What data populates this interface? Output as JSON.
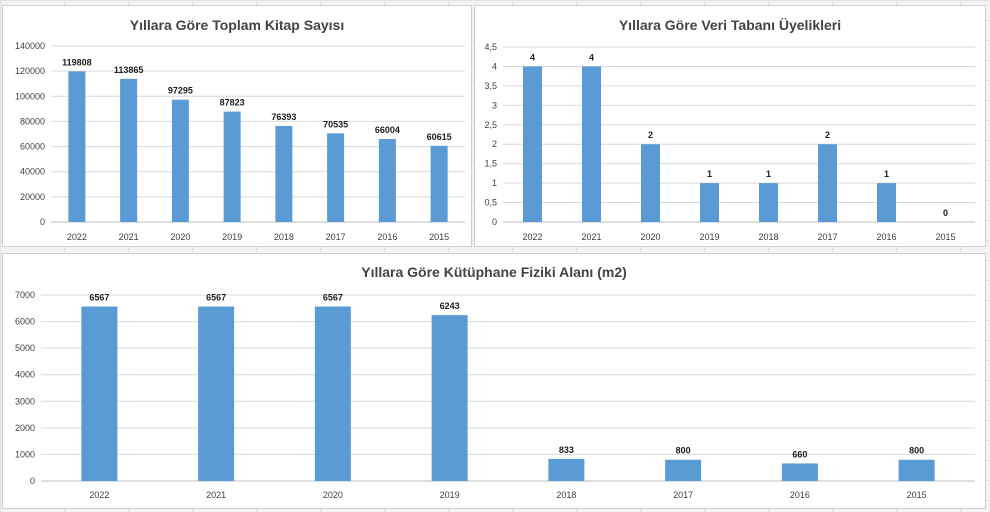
{
  "chart_data": [
    {
      "type": "bar",
      "title": "Yıllara Göre Toplam Kitap Sayısı",
      "categories": [
        "2022",
        "2021",
        "2020",
        "2019",
        "2018",
        "2017",
        "2016",
        "2015"
      ],
      "values": [
        119808,
        113865,
        97295,
        87823,
        76393,
        70535,
        66004,
        60615
      ],
      "labels": [
        "119808",
        "113865",
        "97295",
        "87823",
        "76393",
        "70535",
        "66004",
        "60615"
      ],
      "yticks": [
        "0",
        "20000",
        "40000",
        "60000",
        "80000",
        "100000",
        "120000",
        "140000"
      ],
      "ylim": [
        0,
        140000
      ],
      "grid": true,
      "color": "#5b9bd5"
    },
    {
      "type": "bar",
      "title": "Yıllara Göre Veri Tabanı Üyelikleri",
      "categories": [
        "2022",
        "2021",
        "2020",
        "2019",
        "2018",
        "2017",
        "2016",
        "2015"
      ],
      "values": [
        4,
        4,
        2,
        1,
        1,
        2,
        1,
        0
      ],
      "labels": [
        "4",
        "4",
        "2",
        "1",
        "1",
        "2",
        "1",
        "0"
      ],
      "yticks": [
        "0",
        "0,5",
        "1",
        "1,5",
        "2",
        "2,5",
        "3",
        "3,5",
        "4",
        "4,5"
      ],
      "ylim": [
        0,
        4.5
      ],
      "grid": true,
      "color": "#5b9bd5"
    },
    {
      "type": "bar",
      "title": "Yıllara Göre Kütüphane Fiziki Alanı (m2)",
      "categories": [
        "2022",
        "2021",
        "2020",
        "2019",
        "2018",
        "2017",
        "2016",
        "2015"
      ],
      "values": [
        6567,
        6567,
        6567,
        6243,
        833,
        800,
        660,
        800
      ],
      "labels": [
        "6567",
        "6567",
        "6567",
        "6243",
        "833",
        "800",
        "660",
        "800"
      ],
      "yticks": [
        "0",
        "1000",
        "2000",
        "3000",
        "4000",
        "5000",
        "6000",
        "7000"
      ],
      "ylim": [
        0,
        7000
      ],
      "grid": true,
      "color": "#5b9bd5"
    }
  ]
}
